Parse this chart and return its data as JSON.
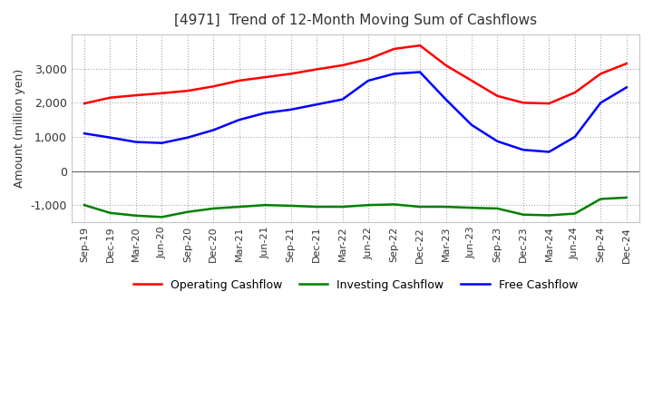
{
  "title": "[4971]  Trend of 12-Month Moving Sum of Cashflows",
  "ylabel": "Amount (million yen)",
  "title_color": "#333333",
  "background_color": "#ffffff",
  "plot_bg_color": "#ffffff",
  "grid_color": "#aaaaaa",
  "x_labels": [
    "Sep-19",
    "Dec-19",
    "Mar-20",
    "Jun-20",
    "Sep-20",
    "Dec-20",
    "Mar-21",
    "Jun-21",
    "Sep-21",
    "Dec-21",
    "Mar-22",
    "Jun-22",
    "Sep-22",
    "Dec-22",
    "Mar-23",
    "Jun-23",
    "Sep-23",
    "Dec-23",
    "Mar-24",
    "Jun-24",
    "Sep-24",
    "Dec-24"
  ],
  "operating_cashflow": [
    1980,
    2150,
    2220,
    2280,
    2350,
    2480,
    2650,
    2750,
    2850,
    2980,
    3100,
    3280,
    3580,
    3680,
    3100,
    2650,
    2200,
    2000,
    1980,
    2300,
    2850,
    3150
  ],
  "investing_cashflow": [
    -1000,
    -1230,
    -1310,
    -1350,
    -1200,
    -1100,
    -1050,
    -1000,
    -1020,
    -1050,
    -1050,
    -1000,
    -980,
    -1050,
    -1050,
    -1080,
    -1100,
    -1280,
    -1300,
    -1250,
    -820,
    -780
  ],
  "free_cashflow": [
    1100,
    980,
    850,
    820,
    980,
    1200,
    1500,
    1700,
    1800,
    1950,
    2100,
    2650,
    2850,
    2900,
    2100,
    1350,
    870,
    620,
    560,
    1000,
    2000,
    2450
  ],
  "operating_color": "#ff0000",
  "investing_color": "#008000",
  "free_color": "#0000ff",
  "ylim": [
    -1500,
    4000
  ],
  "yticks": [
    -1000,
    0,
    1000,
    2000,
    3000
  ],
  "legend_labels": [
    "Operating Cashflow",
    "Investing Cashflow",
    "Free Cashflow"
  ]
}
